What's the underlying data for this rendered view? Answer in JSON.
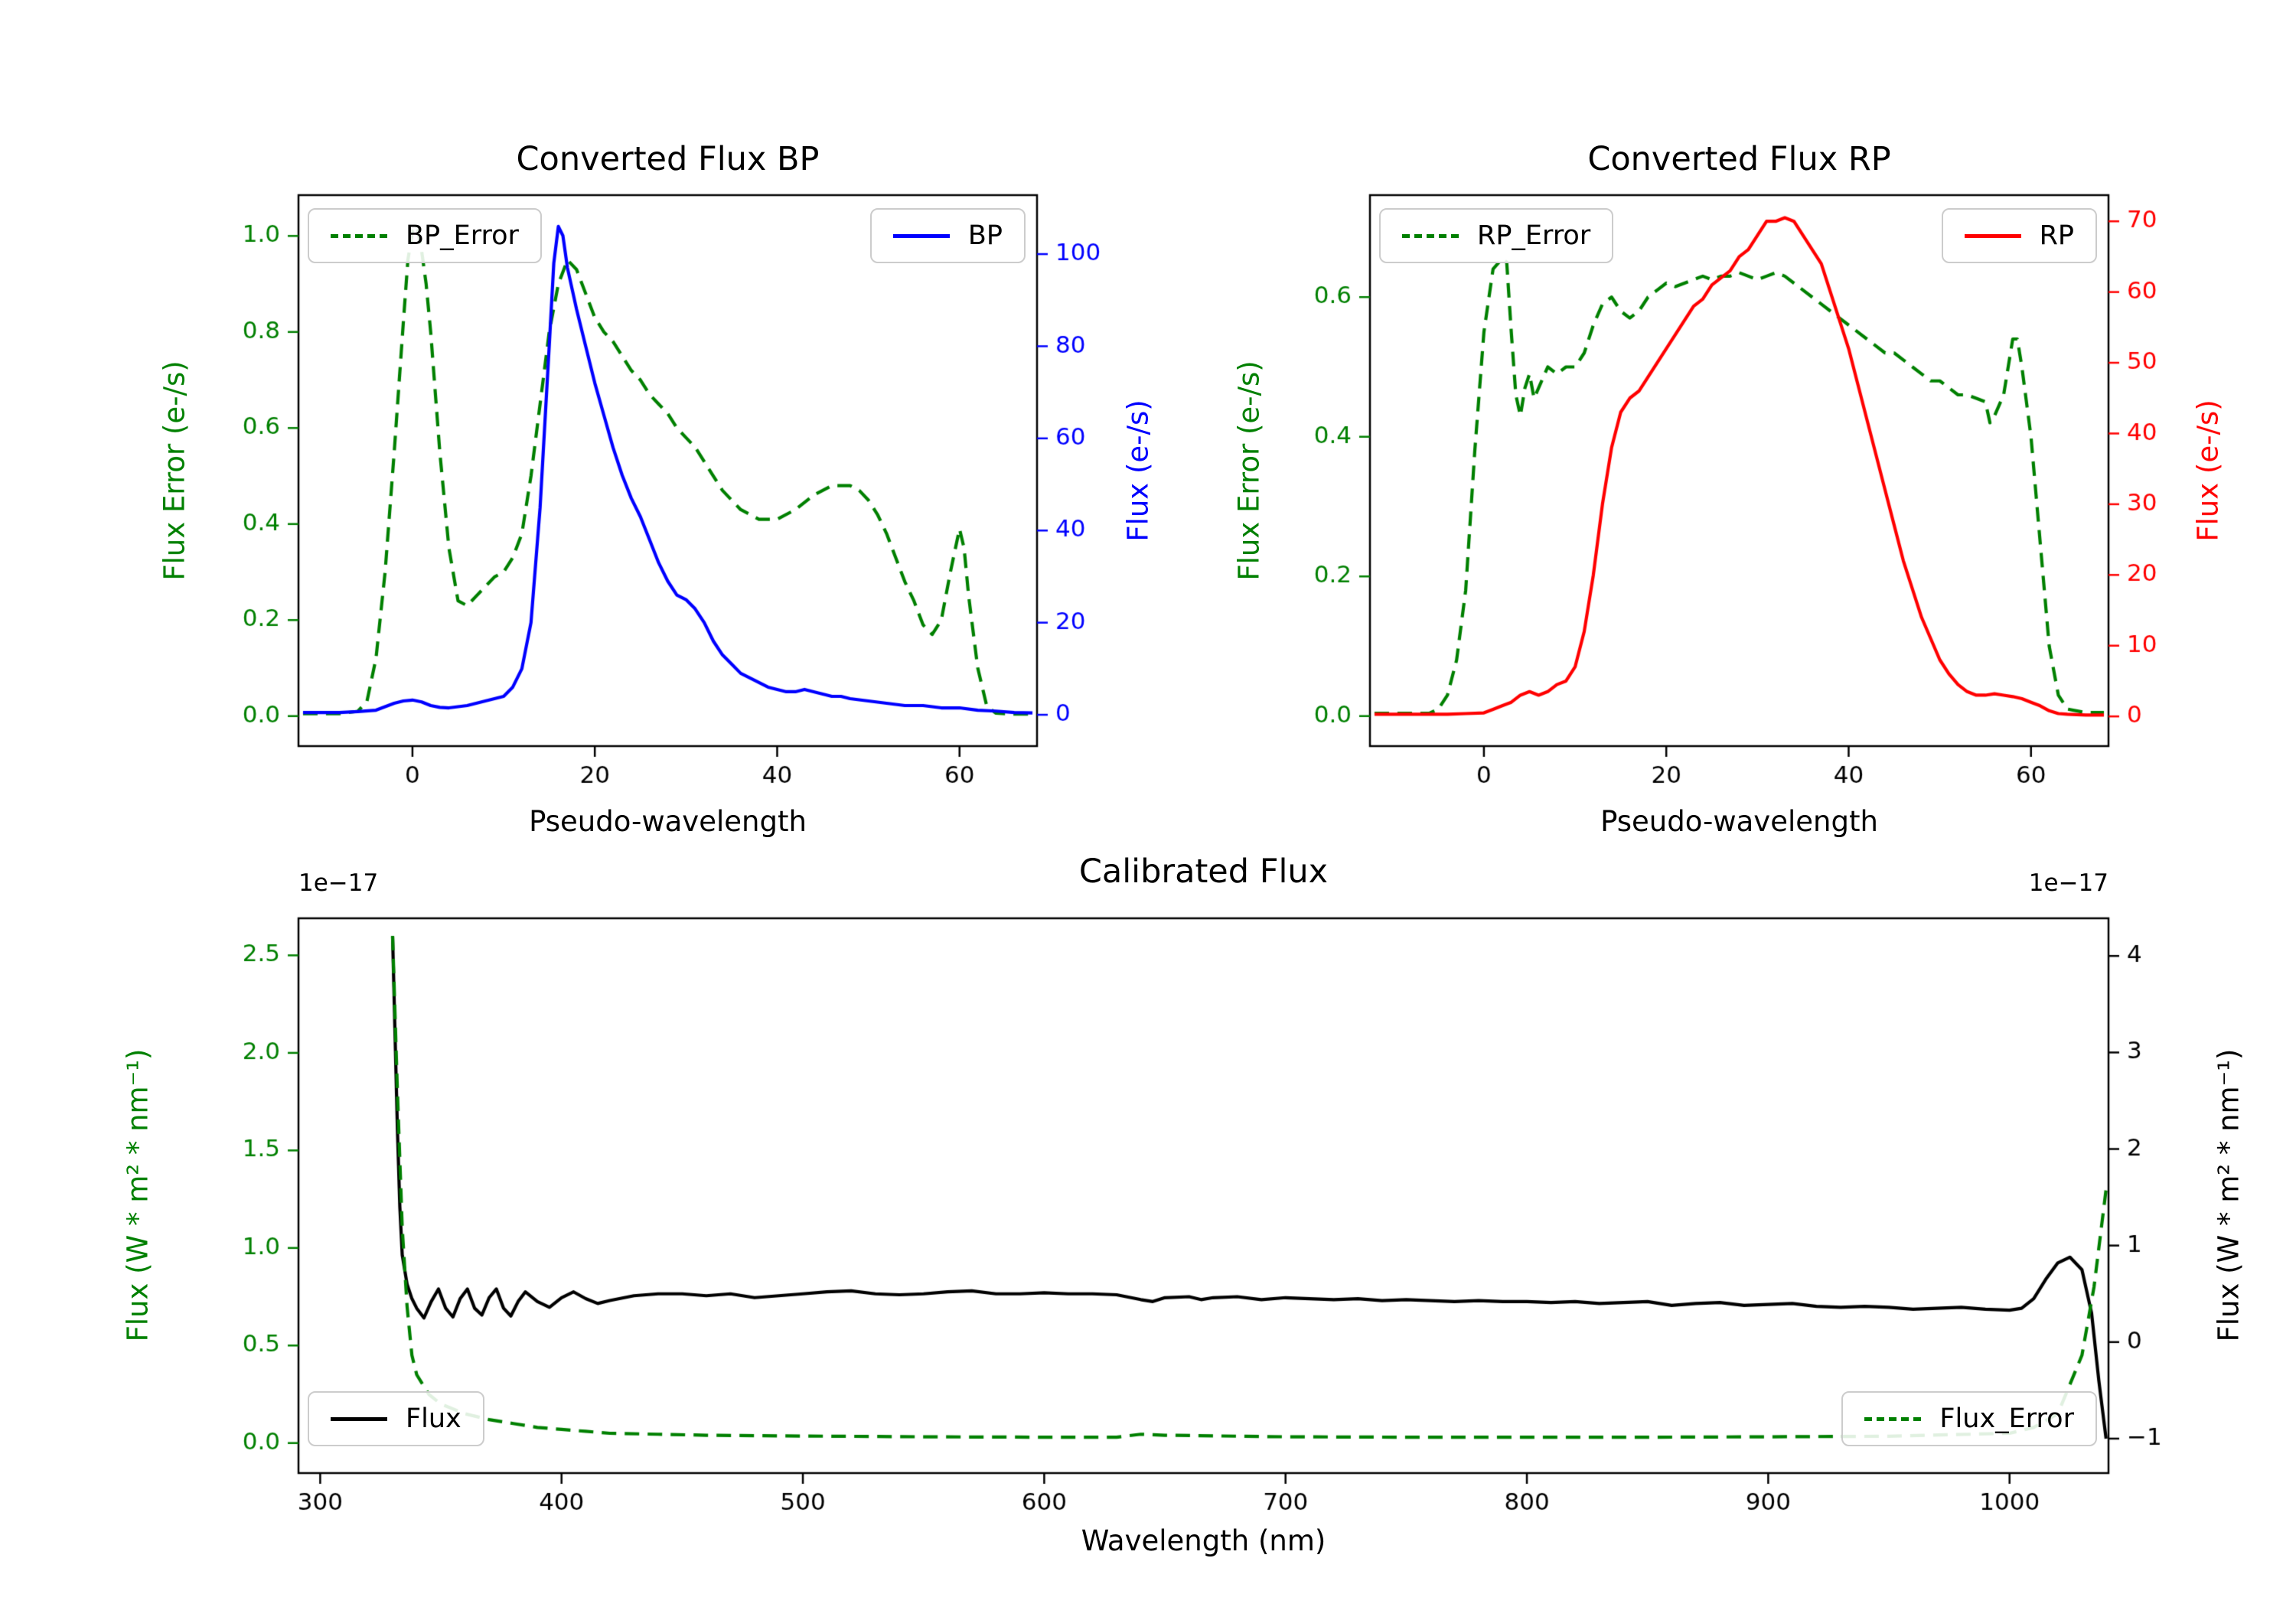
{
  "figure": {
    "background": "#ffffff"
  },
  "colors": {
    "error_green": "#008000",
    "bp_blue": "#0000ff",
    "rp_red": "#ff0000",
    "flux_black": "#000000"
  },
  "chart_data": [
    {
      "id": "bp",
      "type": "line",
      "title": "Converted Flux BP",
      "xlabel": "Pseudo-wavelength",
      "x_range": [
        -12.5,
        68.5
      ],
      "x_ticks": [
        0,
        20,
        40,
        60
      ],
      "x_tick_labels": [
        "0",
        "20",
        "40",
        "60"
      ],
      "left_axis": {
        "label": "Flux Error (e-/s)",
        "color": "#008000",
        "range": [
          -0.0625,
          1.085
        ],
        "ticks": [
          0,
          0.2,
          0.4,
          0.6,
          0.8,
          1.0
        ],
        "tick_labels": [
          "0.0",
          "0.2",
          "0.4",
          "0.6",
          "0.8",
          "1.0"
        ]
      },
      "right_axis": {
        "label": "Flux (e-/s)",
        "color": "#0000ff",
        "range": [
          -6.8,
          112.8
        ],
        "ticks": [
          0,
          20,
          40,
          60,
          80,
          100
        ],
        "tick_labels": [
          "0",
          "20",
          "40",
          "60",
          "80",
          "100"
        ]
      },
      "legend_positions": [
        "upper left",
        "upper right"
      ],
      "series": [
        {
          "name": "BP_Error",
          "axis": "left",
          "color": "#008000",
          "style": "dashed",
          "x": [
            -12,
            -8,
            -6,
            -5,
            -4,
            -3,
            -2,
            -1,
            -0.5,
            0,
            0.5,
            1,
            1.5,
            2,
            3,
            4,
            5,
            6,
            7,
            8,
            9,
            10,
            11,
            12,
            13,
            14,
            15,
            16,
            17,
            18,
            19,
            20,
            21,
            22,
            23,
            24,
            25,
            26,
            27,
            28,
            29,
            30,
            31,
            32,
            33,
            34,
            35,
            36,
            37,
            38,
            40,
            42,
            44,
            46,
            48,
            49,
            50,
            51,
            52,
            53,
            54,
            55,
            56,
            57,
            58,
            59,
            60,
            60.5,
            61,
            62,
            63,
            64,
            66,
            68
          ],
          "y": [
            0.005,
            0.005,
            0.01,
            0.03,
            0.12,
            0.3,
            0.55,
            0.82,
            0.95,
            1.01,
            1.02,
            0.97,
            0.9,
            0.8,
            0.55,
            0.35,
            0.24,
            0.23,
            0.25,
            0.27,
            0.29,
            0.3,
            0.33,
            0.38,
            0.5,
            0.65,
            0.8,
            0.9,
            0.95,
            0.93,
            0.88,
            0.83,
            0.8,
            0.78,
            0.75,
            0.72,
            0.7,
            0.67,
            0.65,
            0.63,
            0.6,
            0.58,
            0.56,
            0.53,
            0.5,
            0.47,
            0.45,
            0.43,
            0.42,
            0.41,
            0.41,
            0.43,
            0.46,
            0.48,
            0.48,
            0.47,
            0.45,
            0.42,
            0.38,
            0.33,
            0.28,
            0.24,
            0.19,
            0.17,
            0.2,
            0.3,
            0.39,
            0.35,
            0.25,
            0.1,
            0.02,
            0.006,
            0.004,
            0.004
          ]
        },
        {
          "name": "BP",
          "axis": "right",
          "color": "#0000ff",
          "style": "solid",
          "x": [
            -12,
            -8,
            -6,
            -4,
            -2,
            -1,
            0,
            1,
            2,
            3,
            4,
            6,
            8,
            10,
            11,
            12,
            13,
            14,
            15,
            15.5,
            16,
            16.5,
            17,
            18,
            19,
            20,
            21,
            22,
            23,
            24,
            25,
            26,
            27,
            28,
            29,
            30,
            31,
            32,
            33,
            34,
            35,
            36,
            37,
            38,
            39,
            40,
            41,
            42,
            43,
            44,
            45,
            46,
            47,
            48,
            50,
            52,
            54,
            56,
            58,
            60,
            62,
            64,
            66,
            68
          ],
          "y": [
            0.5,
            0.5,
            0.7,
            1,
            2.5,
            3,
            3.2,
            2.8,
            2,
            1.6,
            1.5,
            2,
            3,
            4,
            6,
            10,
            20,
            45,
            80,
            98,
            106,
            104,
            97,
            88,
            80,
            72,
            65,
            58,
            52,
            47,
            43,
            38,
            33,
            29,
            26,
            25,
            23,
            20,
            16,
            13,
            11,
            9,
            8,
            7,
            6,
            5.5,
            5,
            5,
            5.5,
            5,
            4.5,
            4,
            4,
            3.5,
            3,
            2.5,
            2,
            2,
            1.5,
            1.5,
            1,
            0.8,
            0.5,
            0.4
          ]
        }
      ]
    },
    {
      "id": "rp",
      "type": "line",
      "title": "Converted Flux RP",
      "xlabel": "Pseudo-wavelength",
      "x_range": [
        -12.5,
        68.5
      ],
      "x_ticks": [
        0,
        20,
        40,
        60
      ],
      "x_tick_labels": [
        "0",
        "20",
        "40",
        "60"
      ],
      "left_axis": {
        "label": "Flux Error (e-/s)",
        "color": "#008000",
        "range": [
          -0.043,
          0.746
        ],
        "ticks": [
          0,
          0.2,
          0.4,
          0.6
        ],
        "tick_labels": [
          "0.0",
          "0.2",
          "0.4",
          "0.6"
        ]
      },
      "right_axis": {
        "label": "Flux (e-/s)",
        "color": "#ff0000",
        "range": [
          -4.2,
          73.7
        ],
        "ticks": [
          0,
          10,
          20,
          30,
          40,
          50,
          60,
          70
        ],
        "tick_labels": [
          "0",
          "10",
          "20",
          "30",
          "40",
          "50",
          "60",
          "70"
        ]
      },
      "legend_positions": [
        "upper left",
        "upper right"
      ],
      "series": [
        {
          "name": "RP_Error",
          "axis": "left",
          "color": "#008000",
          "style": "dashed",
          "x": [
            -12,
            -6,
            -5,
            -4,
            -3,
            -2,
            -1,
            0,
            1,
            2,
            2.5,
            3,
            3.5,
            4,
            4.5,
            5,
            5.5,
            6,
            7,
            8,
            9,
            10,
            11,
            12,
            13,
            14,
            15,
            16,
            17,
            18,
            19,
            20,
            21,
            22,
            23,
            24,
            25,
            26,
            27,
            28,
            29,
            30,
            31,
            32,
            33,
            34,
            35,
            36,
            37,
            38,
            39,
            40,
            41,
            42,
            43,
            44,
            45,
            46,
            47,
            48,
            49,
            50,
            51,
            52,
            53,
            54,
            55,
            55.5,
            56,
            57,
            58,
            58.5,
            59,
            60,
            61,
            62,
            63,
            64,
            66,
            68
          ],
          "y": [
            0.004,
            0.004,
            0.01,
            0.03,
            0.08,
            0.18,
            0.38,
            0.55,
            0.64,
            0.655,
            0.65,
            0.55,
            0.46,
            0.43,
            0.47,
            0.49,
            0.455,
            0.47,
            0.5,
            0.49,
            0.5,
            0.5,
            0.52,
            0.56,
            0.59,
            0.6,
            0.58,
            0.57,
            0.58,
            0.6,
            0.61,
            0.62,
            0.615,
            0.62,
            0.625,
            0.63,
            0.625,
            0.63,
            0.63,
            0.635,
            0.63,
            0.625,
            0.63,
            0.635,
            0.63,
            0.62,
            0.61,
            0.6,
            0.59,
            0.58,
            0.57,
            0.56,
            0.55,
            0.54,
            0.53,
            0.52,
            0.52,
            0.51,
            0.5,
            0.49,
            0.48,
            0.48,
            0.47,
            0.46,
            0.46,
            0.455,
            0.45,
            0.42,
            0.43,
            0.46,
            0.54,
            0.54,
            0.5,
            0.4,
            0.25,
            0.1,
            0.03,
            0.01,
            0.005,
            0.005
          ]
        },
        {
          "name": "RP",
          "axis": "right",
          "color": "#ff0000",
          "style": "solid",
          "x": [
            -12,
            -4,
            -2,
            0,
            1,
            2,
            3,
            4,
            5,
            6,
            7,
            8,
            9,
            10,
            11,
            12,
            13,
            14,
            15,
            16,
            17,
            18,
            19,
            20,
            21,
            22,
            23,
            24,
            25,
            26,
            27,
            28,
            29,
            30,
            31,
            32,
            33,
            34,
            35,
            36,
            37,
            38,
            39,
            40,
            41,
            42,
            43,
            44,
            45,
            46,
            47,
            48,
            49,
            50,
            51,
            52,
            53,
            54,
            55,
            56,
            57,
            58,
            59,
            60,
            61,
            62,
            63,
            64,
            66,
            68
          ],
          "y": [
            0.3,
            0.3,
            0.4,
            0.5,
            1,
            1.5,
            2,
            3,
            3.5,
            3,
            3.5,
            4.5,
            5,
            7,
            12,
            20,
            30,
            38,
            43,
            45,
            46,
            48,
            50,
            52,
            54,
            56,
            58,
            59,
            61,
            62,
            63,
            65,
            66,
            68,
            70,
            70,
            70.5,
            70,
            68,
            66,
            64,
            60,
            56,
            52,
            47,
            42,
            37,
            32,
            27,
            22,
            18,
            14,
            11,
            8,
            6,
            4.5,
            3.5,
            3,
            3,
            3.2,
            3,
            2.8,
            2.5,
            2,
            1.5,
            0.8,
            0.4,
            0.3,
            0.2,
            0.2
          ]
        }
      ]
    },
    {
      "id": "cal",
      "type": "line",
      "title": "Calibrated Flux",
      "xlabel": "Wavelength (nm)",
      "x_range": [
        291,
        1041
      ],
      "x_ticks": [
        300,
        400,
        500,
        600,
        700,
        800,
        900,
        1000
      ],
      "x_tick_labels": [
        "300",
        "400",
        "500",
        "600",
        "700",
        "800",
        "900",
        "1000"
      ],
      "left_axis": {
        "label": "Flux (W * m² * nm⁻¹)",
        "color": "#008000",
        "offset_text": "1e−17",
        "range": [
          -0.154,
          2.69
        ],
        "ticks": [
          0,
          0.5,
          1.0,
          1.5,
          2.0,
          2.5
        ],
        "tick_labels": [
          "0.0",
          "0.5",
          "1.0",
          "1.5",
          "2.0",
          "2.5"
        ]
      },
      "right_axis": {
        "label": "Flux (W * m² * nm⁻¹)",
        "color": "#000000",
        "offset_text": "1e−17",
        "range": [
          -1.357,
          4.39
        ],
        "ticks": [
          -1,
          0,
          1,
          2,
          3,
          4
        ],
        "tick_labels": [
          "−1",
          "0",
          "1",
          "2",
          "3",
          "4"
        ]
      },
      "legend_positions": [
        "lower left",
        "lower right"
      ],
      "series": [
        {
          "name": "Flux",
          "axis": "right",
          "color": "#000000",
          "style": "solid",
          "x": [
            330,
            331,
            332,
            333,
            334,
            336,
            338,
            340,
            343,
            346,
            349,
            352,
            355,
            358,
            361,
            364,
            367,
            370,
            373,
            376,
            379,
            382,
            385,
            390,
            395,
            400,
            405,
            410,
            415,
            420,
            430,
            440,
            450,
            460,
            470,
            480,
            490,
            500,
            510,
            520,
            530,
            540,
            550,
            560,
            570,
            580,
            590,
            600,
            610,
            620,
            630,
            640,
            645,
            650,
            660,
            665,
            670,
            680,
            690,
            700,
            710,
            720,
            730,
            740,
            750,
            760,
            770,
            780,
            790,
            800,
            810,
            820,
            830,
            840,
            850,
            860,
            870,
            880,
            890,
            900,
            910,
            920,
            930,
            940,
            950,
            960,
            970,
            980,
            990,
            1000,
            1005,
            1010,
            1015,
            1020,
            1025,
            1030,
            1034,
            1037,
            1040
          ],
          "y": [
            4.2,
            3.2,
            2.2,
            1.4,
            0.9,
            0.6,
            0.45,
            0.35,
            0.25,
            0.42,
            0.55,
            0.35,
            0.26,
            0.45,
            0.55,
            0.35,
            0.28,
            0.46,
            0.55,
            0.35,
            0.27,
            0.42,
            0.52,
            0.42,
            0.36,
            0.46,
            0.52,
            0.45,
            0.4,
            0.43,
            0.48,
            0.5,
            0.5,
            0.48,
            0.5,
            0.46,
            0.48,
            0.5,
            0.52,
            0.53,
            0.5,
            0.49,
            0.5,
            0.52,
            0.53,
            0.5,
            0.5,
            0.51,
            0.5,
            0.5,
            0.49,
            0.44,
            0.42,
            0.46,
            0.47,
            0.44,
            0.46,
            0.47,
            0.44,
            0.46,
            0.45,
            0.44,
            0.45,
            0.43,
            0.44,
            0.43,
            0.42,
            0.43,
            0.42,
            0.42,
            0.41,
            0.42,
            0.4,
            0.41,
            0.42,
            0.38,
            0.4,
            0.41,
            0.38,
            0.39,
            0.4,
            0.37,
            0.36,
            0.37,
            0.36,
            0.34,
            0.35,
            0.36,
            0.34,
            0.33,
            0.35,
            0.45,
            0.65,
            0.82,
            0.88,
            0.75,
            0.3,
            -0.4,
            -1.0
          ]
        },
        {
          "name": "Flux_Error",
          "axis": "left",
          "color": "#008000",
          "style": "dashed",
          "x": [
            330,
            332,
            334,
            336,
            338,
            340,
            345,
            350,
            360,
            370,
            380,
            390,
            400,
            410,
            420,
            440,
            460,
            480,
            500,
            550,
            600,
            630,
            640,
            650,
            700,
            750,
            800,
            850,
            900,
            950,
            1000,
            1010,
            1020,
            1030,
            1035,
            1040
          ],
          "y": [
            2.6,
            1.8,
            1.1,
            0.7,
            0.45,
            0.35,
            0.25,
            0.2,
            0.15,
            0.12,
            0.1,
            0.08,
            0.07,
            0.06,
            0.05,
            0.045,
            0.04,
            0.038,
            0.036,
            0.032,
            0.03,
            0.03,
            0.045,
            0.04,
            0.032,
            0.03,
            0.03,
            0.03,
            0.032,
            0.035,
            0.05,
            0.08,
            0.15,
            0.45,
            0.8,
            1.3
          ]
        }
      ]
    }
  ]
}
